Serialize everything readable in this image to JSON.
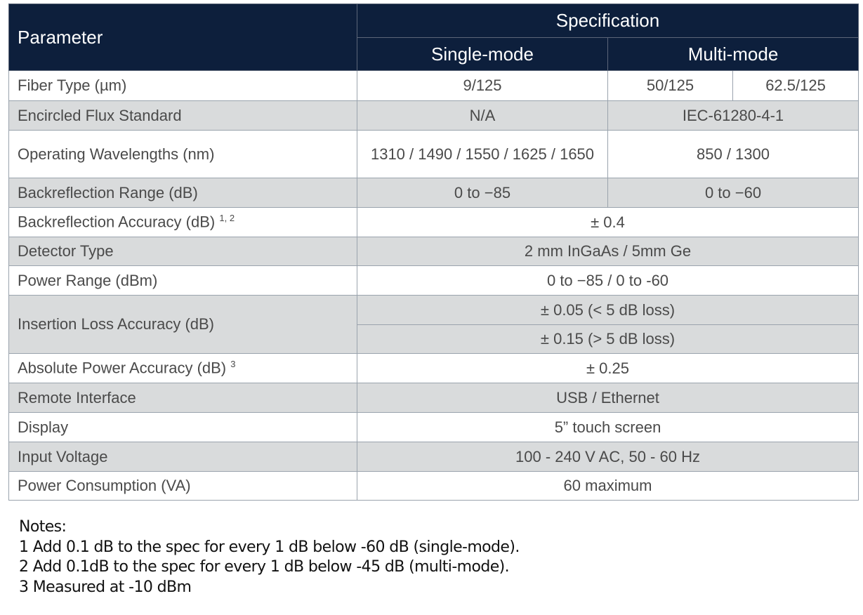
{
  "header": {
    "parameter": "Parameter",
    "specification": "Specification",
    "single_mode": "Single-mode",
    "multi_mode": "Multi-mode"
  },
  "rows": {
    "fiber": {
      "label": "Fiber Type (µm)",
      "sm": "9/125",
      "mm1": "50/125",
      "mm2": "62.5/125"
    },
    "flux": {
      "label": "Encircled Flux Standard",
      "sm": "N/A",
      "mm": "IEC-61280-4-1"
    },
    "wave": {
      "label": "Operating Wavelengths (nm)",
      "sm": "1310 / 1490 / 1550 / 1625 / 1650",
      "mm": "850 / 1300"
    },
    "brrange": {
      "label": "Backreflection Range (dB)",
      "sm": "0 to −85",
      "mm": "0 to −60"
    },
    "bracc": {
      "label": "Backreflection Accuracy (dB)",
      "sup": "1, 2",
      "value": "± 0.4"
    },
    "detector": {
      "label": "Detector Type",
      "value": "2 mm InGaAs / 5mm Ge"
    },
    "power": {
      "label": "Power Range (dBm)",
      "value": "0 to −85 / 0 to -60"
    },
    "ila": {
      "label": "Insertion Loss Accuracy (dB)",
      "value1": "± 0.05 (< 5 dB loss)",
      "value2": "± 0.15 (> 5 dB loss)"
    },
    "abs": {
      "label": "Absolute Power Accuracy (dB)",
      "sup": "3",
      "value": "± 0.25"
    },
    "remote": {
      "label": "Remote Interface",
      "value": "USB / Ethernet"
    },
    "display": {
      "label": "Display",
      "value": "5” touch screen"
    },
    "voltage": {
      "label": "Input Voltage",
      "value": "100 - 240 V AC, 50 - 60 Hz"
    },
    "consumption": {
      "label": "Power Consumption (VA)",
      "value": "60 maximum"
    }
  },
  "notes": {
    "title": "Notes:",
    "items": [
      "1 Add 0.1 dB to the spec for every 1 dB below -60 dB (single-mode).",
      "2 Add 0.1dB to the spec for every 1 dB below -45 dB (multi-mode).",
      "3 Measured at -10 dBm"
    ]
  }
}
